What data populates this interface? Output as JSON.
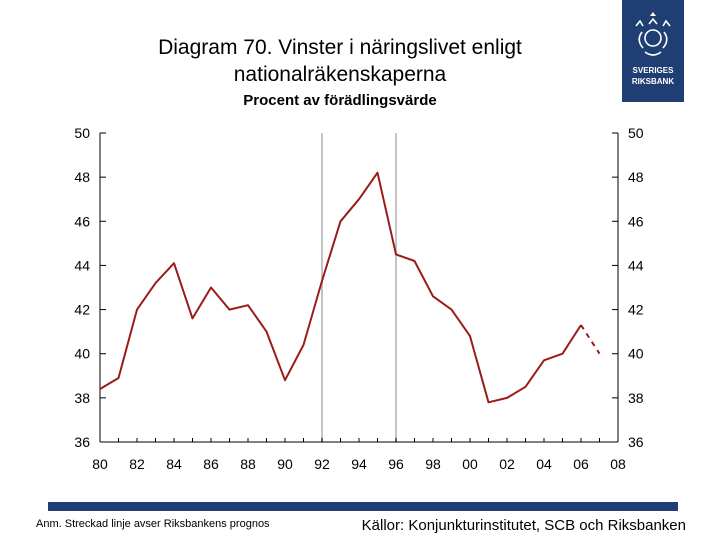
{
  "header": {
    "title": "Diagram 70. Vinster i näringslivet enligt nationalräkenskaperna",
    "subtitle": "Procent av förädlingsvärde",
    "logo_text_line1": "SVERIGES",
    "logo_text_line2": "RIKSBANK",
    "brand_color": "#1f3f74"
  },
  "footer": {
    "note": "Anm. Streckad linje avser Riksbankens prognos",
    "sources": "Källor: Konjunkturinstitutet, SCB och Riksbanken"
  },
  "chart_data": {
    "type": "line",
    "title": "Diagram 70. Vinster i näringslivet enligt nationalräkenskaperna",
    "subtitle": "Procent av förädlingsvärde",
    "x_tick_labels": [
      "80",
      "82",
      "84",
      "86",
      "88",
      "90",
      "92",
      "94",
      "96",
      "98",
      "00",
      "02",
      "04",
      "06",
      "08"
    ],
    "y_ticks": [
      36,
      38,
      40,
      42,
      44,
      46,
      48,
      50
    ],
    "ylim": [
      36,
      50
    ],
    "xlim": [
      1980,
      2008
    ],
    "grid": false,
    "vertical_markers": [
      1992,
      1996
    ],
    "series": [
      {
        "color": "#9b1b1b",
        "style": "solid",
        "x": [
          1980,
          1981,
          1982,
          1983,
          1984,
          1985,
          1986,
          1987,
          1988,
          1989,
          1990,
          1991,
          1992,
          1993,
          1994,
          1995,
          1996,
          1997,
          1998,
          1999,
          2000,
          2001,
          2002,
          2003,
          2004,
          2005,
          2006
        ],
        "values": [
          38.4,
          38.9,
          42.0,
          43.2,
          44.1,
          41.6,
          43.0,
          42.0,
          42.2,
          41.0,
          38.8,
          40.4,
          43.3,
          46.0,
          47.0,
          48.2,
          44.5,
          44.2,
          42.6,
          42.0,
          40.8,
          37.8,
          38.0,
          38.5,
          39.7,
          40.0,
          41.3
        ]
      },
      {
        "color": "#9b1b1b",
        "style": "dashed",
        "x": [
          2006,
          2007
        ],
        "values": [
          41.3,
          40.0
        ]
      }
    ]
  }
}
